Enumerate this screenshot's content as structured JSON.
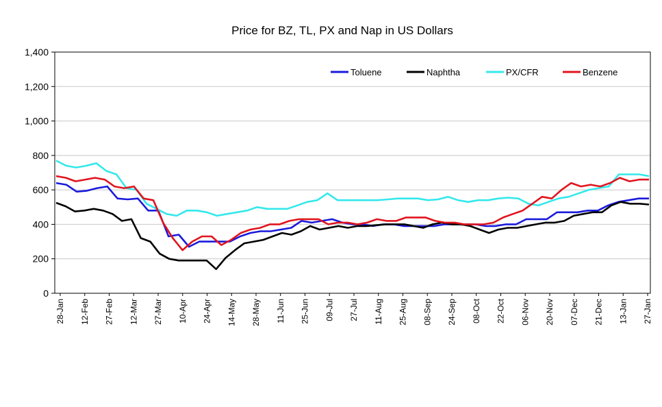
{
  "chart_data": {
    "type": "line",
    "title": "Price for BZ, TL, PX and Nap in US Dollars",
    "xlabel": "",
    "ylabel": "",
    "ylim": [
      0,
      1400
    ],
    "yticks": [
      0,
      200,
      400,
      600,
      800,
      1000,
      1200,
      1400
    ],
    "ytick_labels": [
      "0",
      "200",
      "400",
      "600",
      "800",
      "1,000",
      "1,200",
      "1,400"
    ],
    "x_tick_labels": [
      "28-Jan",
      "12-Feb",
      "27-Feb",
      "12-Mar",
      "27-Mar",
      "10-Apr",
      "24-Apr",
      "14-May",
      "28-May",
      "11-Jun",
      "25-Jun",
      "09-Jul",
      "27-Jul",
      "11-Aug",
      "25-Aug",
      "08-Sep",
      "24-Sep",
      "08-Oct",
      "22-Oct",
      "06-Nov",
      "20-Nov",
      "07-Dec",
      "21-Dec",
      "13-Jan",
      "27-Jan"
    ],
    "grid": true,
    "legend_position": "top-right",
    "series": [
      {
        "name": "Toluene",
        "color": "#1a1adc",
        "values": [
          640,
          630,
          590,
          595,
          610,
          620,
          550,
          545,
          550,
          480,
          480,
          330,
          340,
          270,
          300,
          300,
          300,
          300,
          330,
          350,
          360,
          360,
          370,
          380,
          420,
          410,
          420,
          430,
          410,
          400,
          400,
          390,
          400,
          400,
          390,
          390,
          390,
          390,
          400,
          400,
          400,
          400,
          390,
          390,
          400,
          400,
          430,
          430,
          430,
          470,
          470,
          470,
          480,
          480,
          510,
          530,
          540,
          550,
          550
        ]
      },
      {
        "name": "Naphtha",
        "color": "#000000",
        "values": [
          525,
          505,
          475,
          480,
          490,
          480,
          460,
          420,
          430,
          320,
          300,
          230,
          200,
          190,
          190,
          190,
          190,
          140,
          205,
          250,
          290,
          300,
          310,
          330,
          350,
          340,
          360,
          390,
          370,
          380,
          390,
          380,
          390,
          390,
          395,
          400,
          400,
          400,
          390,
          380,
          400,
          410,
          400,
          400,
          390,
          370,
          350,
          370,
          380,
          380,
          390,
          400,
          410,
          410,
          420,
          450,
          460,
          470,
          470,
          510,
          530,
          520,
          520,
          515
        ]
      },
      {
        "name": "PX/CFR",
        "color": "#33e8ec",
        "values": [
          770,
          740,
          730,
          740,
          755,
          710,
          690,
          610,
          600,
          520,
          490,
          460,
          450,
          480,
          480,
          470,
          450,
          460,
          470,
          480,
          500,
          490,
          490,
          490,
          510,
          530,
          540,
          580,
          540,
          540,
          540,
          540,
          540,
          545,
          550,
          550,
          550,
          540,
          545,
          560,
          540,
          530,
          540,
          540,
          550,
          555,
          550,
          520,
          510,
          530,
          550,
          560,
          580,
          600,
          610,
          620,
          690,
          690,
          690,
          680
        ]
      },
      {
        "name": "Benzene",
        "color": "#e0141e",
        "values": [
          680,
          670,
          650,
          660,
          670,
          660,
          620,
          610,
          620,
          550,
          540,
          410,
          320,
          250,
          300,
          330,
          330,
          280,
          310,
          350,
          370,
          380,
          400,
          400,
          420,
          430,
          430,
          430,
          400,
          410,
          410,
          400,
          410,
          430,
          420,
          420,
          440,
          440,
          440,
          420,
          410,
          410,
          400,
          400,
          400,
          410,
          440,
          460,
          480,
          520,
          560,
          550,
          600,
          640,
          620,
          630,
          620,
          640,
          670,
          650,
          660,
          660
        ]
      }
    ]
  }
}
